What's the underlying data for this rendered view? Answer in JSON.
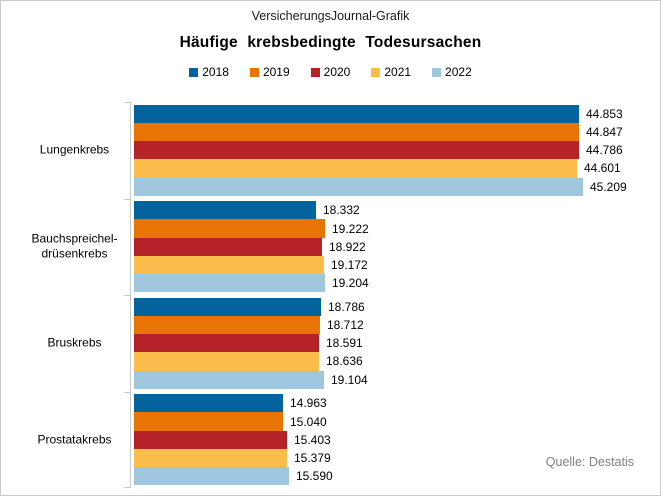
{
  "header": {
    "brand": "VersicherungsJournal-Grafik"
  },
  "footer": {
    "source": "Quelle: Destatis"
  },
  "chart_data": {
    "type": "bar",
    "orientation": "horizontal",
    "title": "Häufige krebsbedingte Todesursachen",
    "legend_position": "top",
    "grid": false,
    "value_axis": {
      "min": 0,
      "max": 45209,
      "tick_labels_visible": false
    },
    "years": [
      {
        "label": "2018",
        "color": "#02639D"
      },
      {
        "label": "2019",
        "color": "#E87405"
      },
      {
        "label": "2020",
        "color": "#B52228"
      },
      {
        "label": "2021",
        "color": "#FABC4A"
      },
      {
        "label": "2022",
        "color": "#A0C6DE"
      }
    ],
    "groups": [
      {
        "category": "Lungenkrebs",
        "label_lines": [
          "Lungenkrebs"
        ],
        "bars": [
          {
            "year": "2018",
            "value": 44853,
            "label": "44.853"
          },
          {
            "year": "2019",
            "value": 44847,
            "label": "44.847"
          },
          {
            "year": "2020",
            "value": 44786,
            "label": "44.786"
          },
          {
            "year": "2021",
            "value": 44601,
            "label": "44.601"
          },
          {
            "year": "2022",
            "value": 45209,
            "label": "45.209"
          }
        ]
      },
      {
        "category": "Bauchspreichel-drüsenkrebs",
        "label_lines": [
          "Bauchspreichel-",
          "drüsenkrebs"
        ],
        "bars": [
          {
            "year": "2018",
            "value": 18332,
            "label": "18.332"
          },
          {
            "year": "2019",
            "value": 19222,
            "label": "19.222"
          },
          {
            "year": "2020",
            "value": 18922,
            "label": "18.922"
          },
          {
            "year": "2021",
            "value": 19172,
            "label": "19.172"
          },
          {
            "year": "2022",
            "value": 19204,
            "label": "19.204"
          }
        ]
      },
      {
        "category": "Bruskrebs",
        "label_lines": [
          "Bruskrebs"
        ],
        "bars": [
          {
            "year": "2018",
            "value": 18786,
            "label": "18.786"
          },
          {
            "year": "2019",
            "value": 18712,
            "label": "18.712"
          },
          {
            "year": "2020",
            "value": 18591,
            "label": "18.591"
          },
          {
            "year": "2021",
            "value": 18636,
            "label": "18.636"
          },
          {
            "year": "2022",
            "value": 19104,
            "label": "19.104"
          }
        ]
      },
      {
        "category": "Prostatakrebs",
        "label_lines": [
          "Prostatakrebs"
        ],
        "bars": [
          {
            "year": "2018",
            "value": 14963,
            "label": "14.963"
          },
          {
            "year": "2019",
            "value": 15040,
            "label": "15.040"
          },
          {
            "year": "2020",
            "value": 15403,
            "label": "15.403"
          },
          {
            "year": "2021",
            "value": 15379,
            "label": "15.379"
          },
          {
            "year": "2022",
            "value": 15590,
            "label": "15.590"
          }
        ]
      }
    ]
  }
}
